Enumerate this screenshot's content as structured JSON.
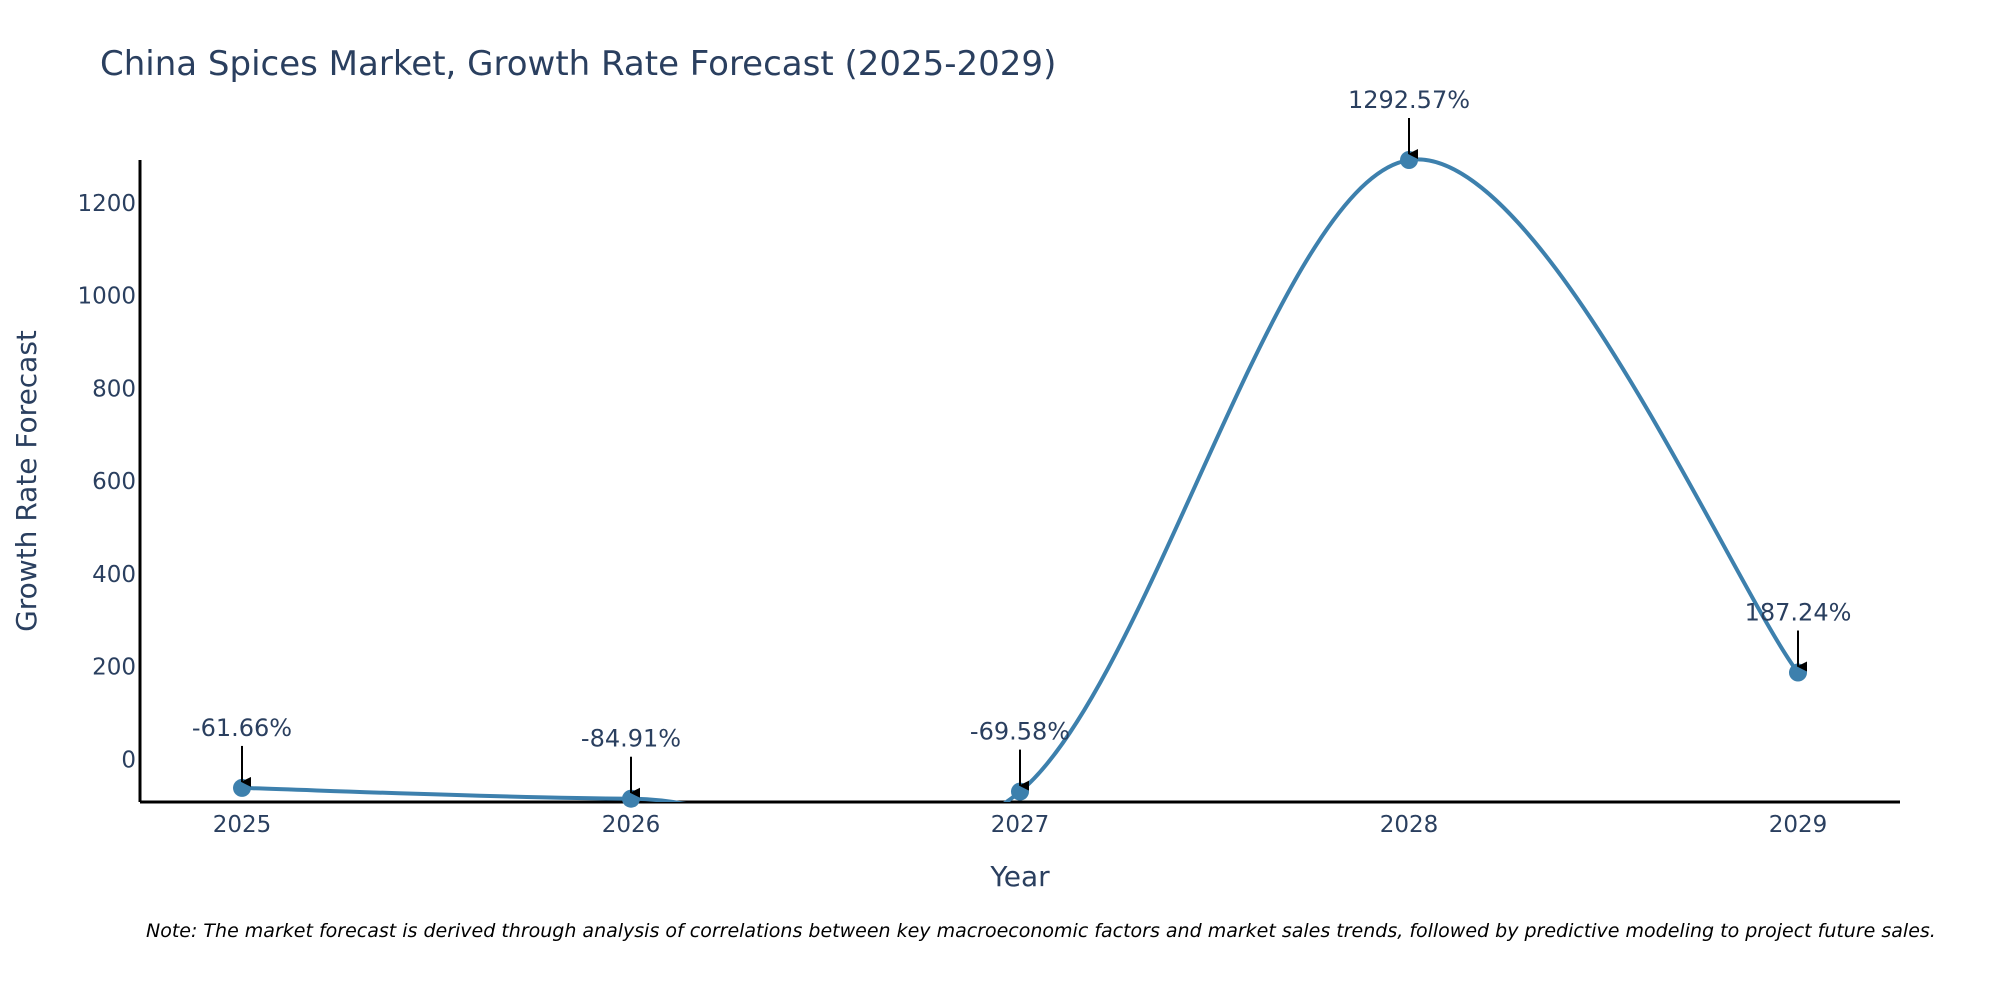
{
  "chart_data": {
    "type": "line",
    "title": "China Spices Market, Growth Rate Forecast (2025-2029)",
    "xlabel": "Year",
    "ylabel": "Growth Rate Forecast",
    "categories": [
      "2025",
      "2026",
      "2027",
      "2028",
      "2029"
    ],
    "values": [
      -61.66,
      -84.91,
      -69.58,
      1292.57,
      187.24
    ],
    "labels": [
      "-61.66%",
      "-84.91%",
      "-69.58%",
      "1292.57%",
      "187.24%"
    ],
    "yticks": [
      0,
      200,
      400,
      600,
      800,
      1000,
      1200
    ],
    "ylim": [
      -92,
      1292.57
    ],
    "line_color": "#3d80ad",
    "note": "Note: The market forecast is derived through analysis of correlations between key macroeconomic factors and market sales trends, followed by predictive modeling to project future sales."
  }
}
